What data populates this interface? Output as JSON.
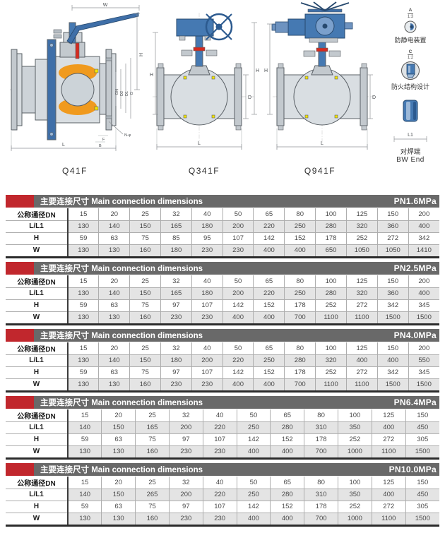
{
  "colors": {
    "accent_red": "#c1272d",
    "header_gray": "#696969",
    "row_alt_gray": "#e4e4e4",
    "steel_blue": "#3f6fa8",
    "seat_orange": "#f09a1e",
    "marker_yellow": "#f5e400"
  },
  "figures": [
    {
      "label": "Q41F"
    },
    {
      "label": "Q341F"
    },
    {
      "label": "Q941F"
    }
  ],
  "dims": {
    "q41f": {
      "w": "W",
      "h": "H",
      "dn": "DN",
      "d2": "D2",
      "d1": "D1",
      "d": "D",
      "l": "L",
      "n_phi": "N-φ",
      "f": "F",
      "b": "B"
    },
    "q341f": {
      "h": "H",
      "d": "D",
      "l": "L"
    },
    "q941f": {
      "h": "H",
      "d": "D",
      "l": "L"
    }
  },
  "side_notes": {
    "antistatic": {
      "callout": "A",
      "scale": "1:3",
      "label": "防静电装置"
    },
    "fireproof": {
      "callout": "C",
      "scale": "1:2",
      "label": "防火结构设计"
    },
    "bw_end": {
      "dim": "L1",
      "label_zh": "对焊端",
      "label_en": "BW End"
    }
  },
  "table_header": {
    "title_zh": "主要连接尺寸",
    "title_en": "Main connection dimensions",
    "dn_label": "公称通径DN"
  },
  "tables": [
    {
      "pressure": "PN1.6MPa",
      "dn": [
        "15",
        "20",
        "25",
        "32",
        "40",
        "50",
        "65",
        "80",
        "100",
        "125",
        "150",
        "200"
      ],
      "rows": [
        {
          "label": "L/L1",
          "values": [
            "130",
            "140",
            "150",
            "165",
            "180",
            "200",
            "220",
            "250",
            "280",
            "320",
            "360",
            "400"
          ]
        },
        {
          "label": "H",
          "values": [
            "59",
            "63",
            "75",
            "85",
            "95",
            "107",
            "142",
            "152",
            "178",
            "252",
            "272",
            "342"
          ]
        },
        {
          "label": "W",
          "values": [
            "130",
            "130",
            "160",
            "180",
            "230",
            "230",
            "400",
            "400",
            "650",
            "1050",
            "1050",
            "1410"
          ]
        }
      ]
    },
    {
      "pressure": "PN2.5MPa",
      "dn": [
        "15",
        "20",
        "25",
        "32",
        "40",
        "50",
        "65",
        "80",
        "100",
        "125",
        "150",
        "200"
      ],
      "rows": [
        {
          "label": "L/L1",
          "values": [
            "130",
            "140",
            "150",
            "165",
            "180",
            "200",
            "220",
            "250",
            "280",
            "320",
            "360",
            "400"
          ]
        },
        {
          "label": "H",
          "values": [
            "59",
            "63",
            "75",
            "97",
            "107",
            "142",
            "152",
            "178",
            "252",
            "272",
            "342",
            "345"
          ]
        },
        {
          "label": "W",
          "values": [
            "130",
            "130",
            "160",
            "230",
            "230",
            "400",
            "400",
            "700",
            "1100",
            "1100",
            "1500",
            "1500"
          ]
        }
      ]
    },
    {
      "pressure": "PN4.0MPa",
      "dn": [
        "15",
        "20",
        "25",
        "32",
        "40",
        "50",
        "65",
        "80",
        "100",
        "125",
        "150",
        "200"
      ],
      "rows": [
        {
          "label": "L/L1",
          "values": [
            "130",
            "140",
            "150",
            "180",
            "200",
            "220",
            "250",
            "280",
            "320",
            "400",
            "400",
            "550"
          ]
        },
        {
          "label": "H",
          "values": [
            "59",
            "63",
            "75",
            "97",
            "107",
            "142",
            "152",
            "178",
            "252",
            "272",
            "342",
            "345"
          ]
        },
        {
          "label": "W",
          "values": [
            "130",
            "130",
            "160",
            "230",
            "230",
            "400",
            "400",
            "700",
            "1100",
            "1100",
            "1500",
            "1500"
          ]
        }
      ]
    },
    {
      "pressure": "PN6.4MPa",
      "dn": [
        "15",
        "20",
        "25",
        "32",
        "40",
        "50",
        "65",
        "80",
        "100",
        "125",
        "150"
      ],
      "rows": [
        {
          "label": "L/L1",
          "values": [
            "140",
            "150",
            "165",
            "200",
            "220",
            "250",
            "280",
            "310",
            "350",
            "400",
            "450"
          ]
        },
        {
          "label": "H",
          "values": [
            "59",
            "63",
            "75",
            "97",
            "107",
            "142",
            "152",
            "178",
            "252",
            "272",
            "305"
          ]
        },
        {
          "label": "W",
          "values": [
            "130",
            "130",
            "160",
            "230",
            "230",
            "400",
            "400",
            "700",
            "1000",
            "1100",
            "1500"
          ]
        }
      ]
    },
    {
      "pressure": "PN10.0MPa",
      "dn": [
        "15",
        "20",
        "25",
        "32",
        "40",
        "50",
        "65",
        "80",
        "100",
        "125",
        "150"
      ],
      "rows": [
        {
          "label": "L/L1",
          "values": [
            "140",
            "150",
            "265",
            "200",
            "220",
            "250",
            "280",
            "310",
            "350",
            "400",
            "450"
          ]
        },
        {
          "label": "H",
          "values": [
            "59",
            "63",
            "75",
            "97",
            "107",
            "142",
            "152",
            "178",
            "252",
            "272",
            "305"
          ]
        },
        {
          "label": "W",
          "values": [
            "130",
            "130",
            "160",
            "230",
            "230",
            "400",
            "400",
            "700",
            "1000",
            "1100",
            "1500"
          ]
        }
      ]
    }
  ]
}
